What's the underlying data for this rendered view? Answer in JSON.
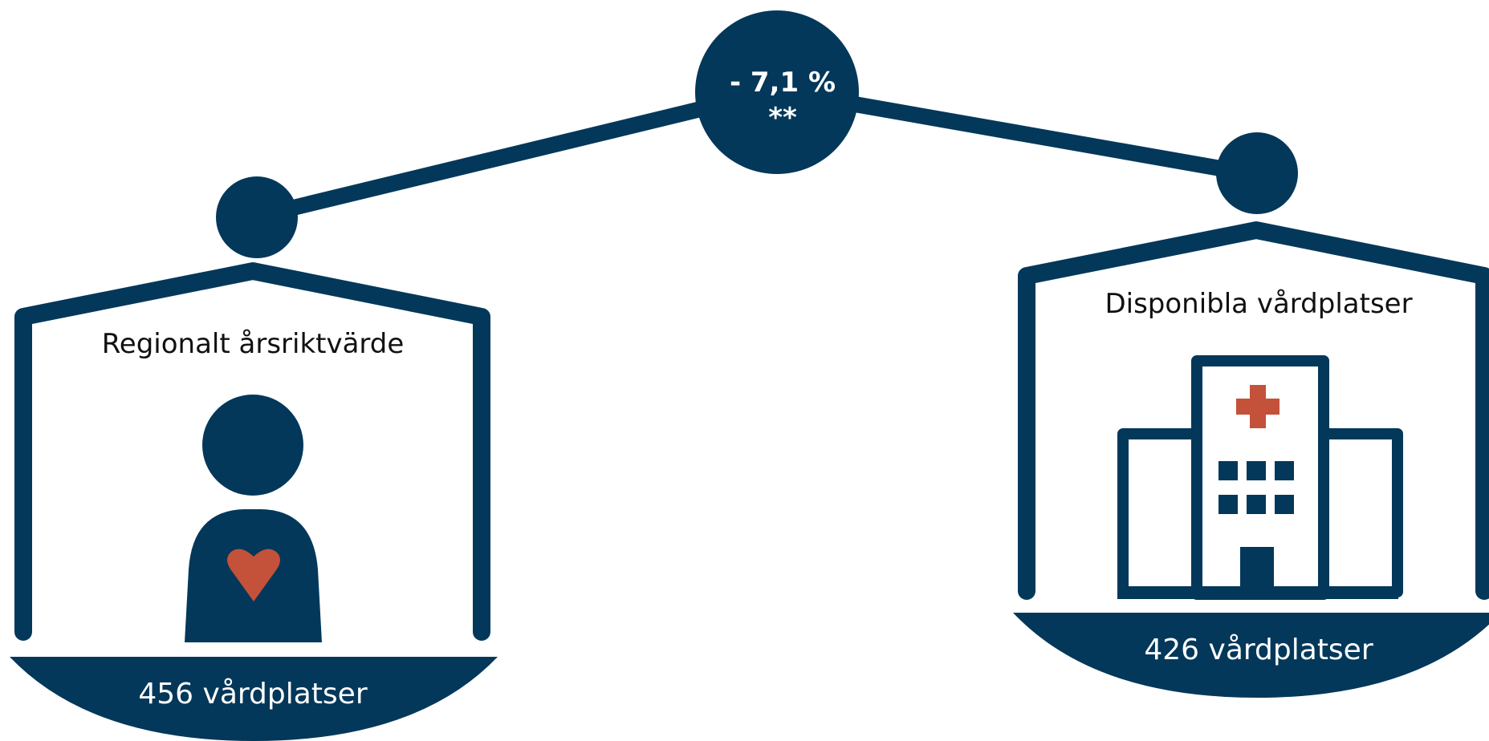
{
  "colors": {
    "navy": "#03385a",
    "accent": "#c4513a",
    "background": "#ffffff"
  },
  "badge": {
    "line1": "- 7,1 %",
    "line2": "**"
  },
  "left": {
    "title": "Regionalt årsriktvärde",
    "value": "456 vårdplatser",
    "icon": "person-heart-icon"
  },
  "right": {
    "title": "Disponibla vårdplatser",
    "value": "426 vårdplatser",
    "icon": "hospital-icon"
  }
}
